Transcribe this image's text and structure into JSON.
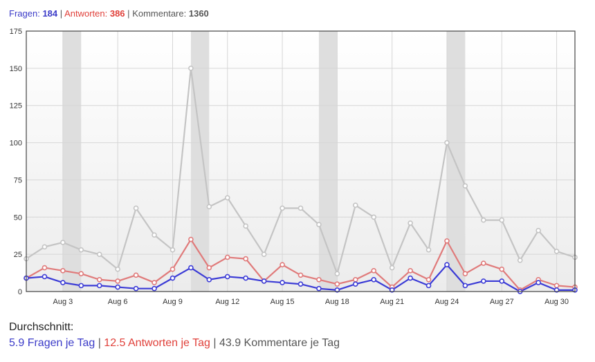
{
  "summary": {
    "questions_label": "Fragen:",
    "questions_count": "184",
    "answers_label": "Antworten:",
    "answers_count": "386",
    "comments_label": "Kommentare:",
    "comments_count": "1360",
    "separator": "|"
  },
  "averages": {
    "title": "Durchschnitt:",
    "questions_text": "5.9 Fragen je Tag",
    "answers_text": "12.5 Antworten je Tag",
    "comments_text": "43.9 Kommentare je Tag",
    "separator": "|"
  },
  "colors": {
    "questions": "#3b3bd6",
    "answers": "#e07a7a",
    "comments": "#c4c4c4",
    "weekend_band": "#dedede",
    "grid": "#d6d6d6"
  },
  "chart_data": {
    "type": "line",
    "x": [
      "Aug 1",
      "Aug 2",
      "Aug 3",
      "Aug 4",
      "Aug 5",
      "Aug 6",
      "Aug 7",
      "Aug 8",
      "Aug 9",
      "Aug 10",
      "Aug 11",
      "Aug 12",
      "Aug 13",
      "Aug 14",
      "Aug 15",
      "Aug 16",
      "Aug 17",
      "Aug 18",
      "Aug 19",
      "Aug 20",
      "Aug 21",
      "Aug 22",
      "Aug 23",
      "Aug 24",
      "Aug 25",
      "Aug 26",
      "Aug 27",
      "Aug 28",
      "Aug 29",
      "Aug 30",
      "Aug 31"
    ],
    "x_tick_labels": [
      "Aug 3",
      "Aug 6",
      "Aug 9",
      "Aug 12",
      "Aug 15",
      "Aug 18",
      "Aug 21",
      "Aug 24",
      "Aug 27",
      "Aug 30"
    ],
    "y_ticks": [
      0,
      25,
      50,
      75,
      100,
      125,
      150,
      175
    ],
    "ylim": [
      0,
      175
    ],
    "weekend_bands": [
      [
        "Aug 3",
        "Aug 4"
      ],
      [
        "Aug 10",
        "Aug 11"
      ],
      [
        "Aug 17",
        "Aug 18"
      ],
      [
        "Aug 24",
        "Aug 25"
      ]
    ],
    "grid": true,
    "series": [
      {
        "key": "comments",
        "values": [
          22,
          30,
          33,
          28,
          25,
          15,
          56,
          38,
          28,
          150,
          57,
          63,
          44,
          25,
          56,
          56,
          45,
          12,
          58,
          50,
          16,
          46,
          28,
          100,
          71,
          48,
          48,
          21,
          41,
          27,
          23
        ]
      },
      {
        "key": "answers",
        "values": [
          9,
          16,
          14,
          12,
          8,
          7,
          11,
          6,
          15,
          35,
          16,
          23,
          22,
          7,
          18,
          11,
          8,
          5,
          8,
          14,
          3,
          14,
          8,
          34,
          12,
          19,
          15,
          1,
          8,
          4,
          3
        ]
      },
      {
        "key": "questions",
        "values": [
          9,
          10,
          6,
          4,
          4,
          3,
          2,
          2,
          9,
          16,
          8,
          10,
          9,
          7,
          6,
          5,
          2,
          1,
          5,
          8,
          1,
          9,
          4,
          18,
          4,
          7,
          7,
          0,
          6,
          1,
          1
        ]
      }
    ]
  }
}
